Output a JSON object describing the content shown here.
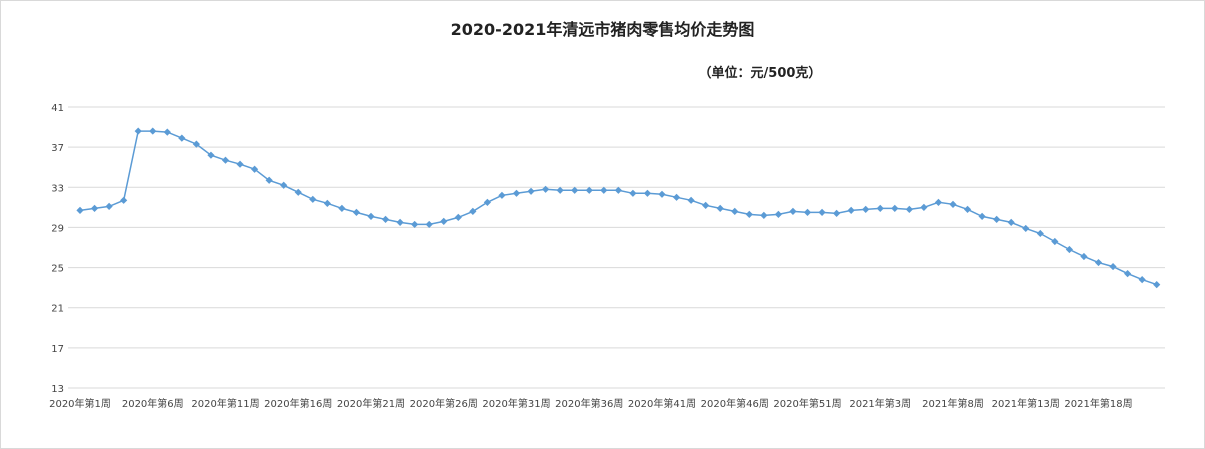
{
  "chart_data": {
    "type": "line",
    "title": "2020-2021年清远市猪肉零售均价走势图",
    "unit": "（单位：元/500克）",
    "xlabel": "",
    "ylabel": "",
    "ylim": [
      13,
      41
    ],
    "yticks": [
      13,
      17,
      21,
      25,
      29,
      33,
      37,
      41
    ],
    "grid": true,
    "legend": "none",
    "line_color": "#5b9bd5",
    "x_tick_labels": [
      {
        "index": 0,
        "label": "2020年第1周"
      },
      {
        "index": 5,
        "label": "2020年第6周"
      },
      {
        "index": 10,
        "label": "2020年第11周"
      },
      {
        "index": 15,
        "label": "2020年第16周"
      },
      {
        "index": 20,
        "label": "2020年第21周"
      },
      {
        "index": 25,
        "label": "2020年第26周"
      },
      {
        "index": 30,
        "label": "2020年第31周"
      },
      {
        "index": 35,
        "label": "2020年第36周"
      },
      {
        "index": 40,
        "label": "2020年第41周"
      },
      {
        "index": 45,
        "label": "2020年第46周"
      },
      {
        "index": 50,
        "label": "2020年第51周"
      },
      {
        "index": 55,
        "label": "2021年第3周"
      },
      {
        "index": 60,
        "label": "2021年第8周"
      },
      {
        "index": 65,
        "label": "2021年第13周"
      },
      {
        "index": 70,
        "label": "2021年第18周"
      }
    ],
    "values": [
      30.7,
      30.9,
      31.1,
      31.7,
      38.6,
      38.6,
      38.5,
      37.9,
      37.3,
      36.2,
      35.7,
      35.3,
      34.8,
      33.7,
      33.2,
      32.5,
      31.8,
      31.4,
      30.9,
      30.5,
      30.1,
      29.8,
      29.5,
      29.3,
      29.3,
      29.6,
      30.0,
      30.6,
      31.5,
      32.2,
      32.4,
      32.6,
      32.8,
      32.7,
      32.7,
      32.7,
      32.7,
      32.7,
      32.4,
      32.4,
      32.3,
      32.0,
      31.7,
      31.2,
      30.9,
      30.6,
      30.3,
      30.2,
      30.3,
      30.6,
      30.5,
      30.5,
      30.4,
      30.7,
      30.8,
      30.9,
      30.9,
      30.8,
      31.0,
      31.5,
      31.3,
      30.8,
      30.1,
      29.8,
      29.5,
      28.9,
      28.4,
      27.6,
      26.8,
      26.1,
      25.5,
      25.1,
      24.4,
      23.8,
      23.3
    ]
  }
}
